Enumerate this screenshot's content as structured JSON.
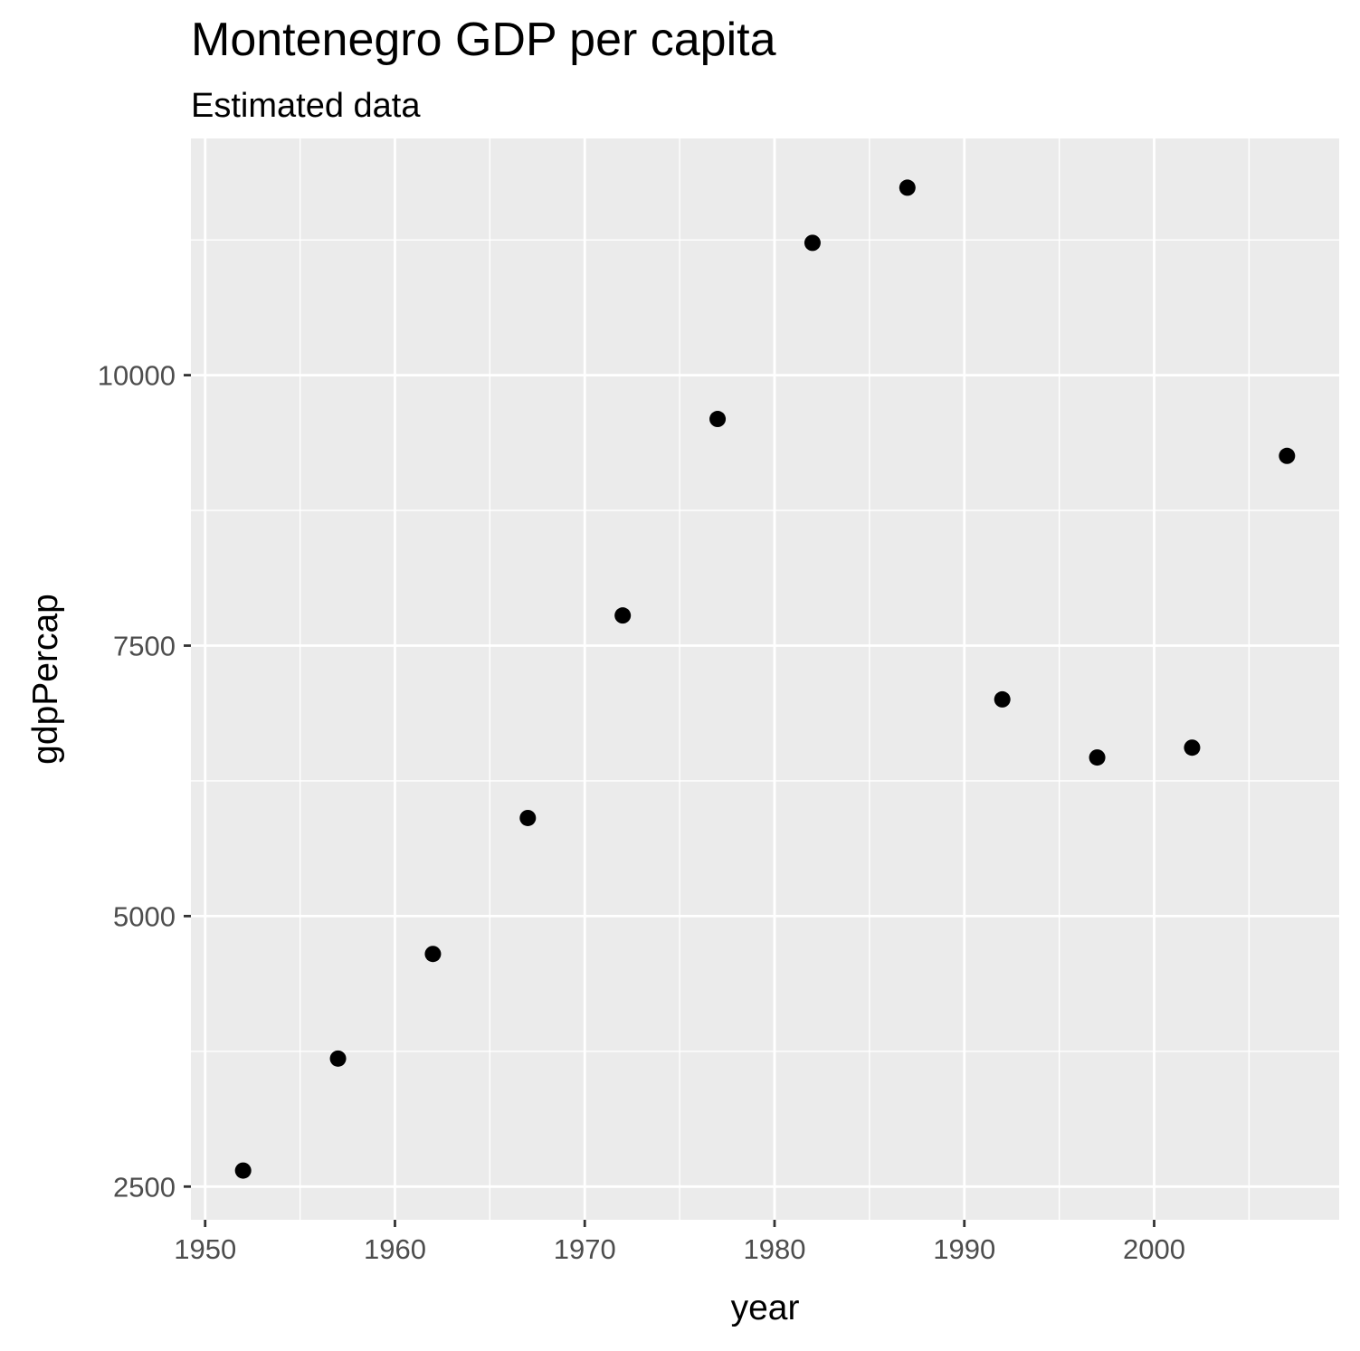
{
  "chart_data": {
    "type": "scatter",
    "title": "Montenegro GDP per capita",
    "subtitle": "Estimated data",
    "xlabel": "year",
    "ylabel": "gdpPercap",
    "x": [
      1952,
      1957,
      1962,
      1967,
      1972,
      1977,
      1982,
      1987,
      1992,
      1997,
      2002,
      2007
    ],
    "y": [
      2648,
      3683,
      4650,
      5907,
      7779,
      9595,
      11223,
      11733,
      7003,
      6466,
      6557,
      9254
    ],
    "xlim": [
      1949.25,
      2009.75
    ],
    "ylim": [
      2193,
      12188
    ],
    "x_ticks": [
      1950,
      1960,
      1970,
      1980,
      1990,
      2000
    ],
    "x_tick_labels": [
      "1950",
      "1960",
      "1970",
      "1980",
      "1990",
      "2000"
    ],
    "y_ticks": [
      2500,
      5000,
      7500,
      10000
    ],
    "y_tick_labels": [
      "2500",
      "5000",
      "7500",
      "10000"
    ],
    "x_minor_ticks": [
      1955,
      1965,
      1975,
      1985,
      1995,
      2005
    ],
    "y_minor_ticks": [
      3750,
      6250,
      8750,
      11250
    ],
    "grid": true,
    "legend": "none",
    "colors": {
      "panel": "#ebebeb",
      "grid": "#ffffff",
      "point": "#000000",
      "tick_text": "#4d4d4d",
      "tick_mark": "#333333"
    }
  }
}
